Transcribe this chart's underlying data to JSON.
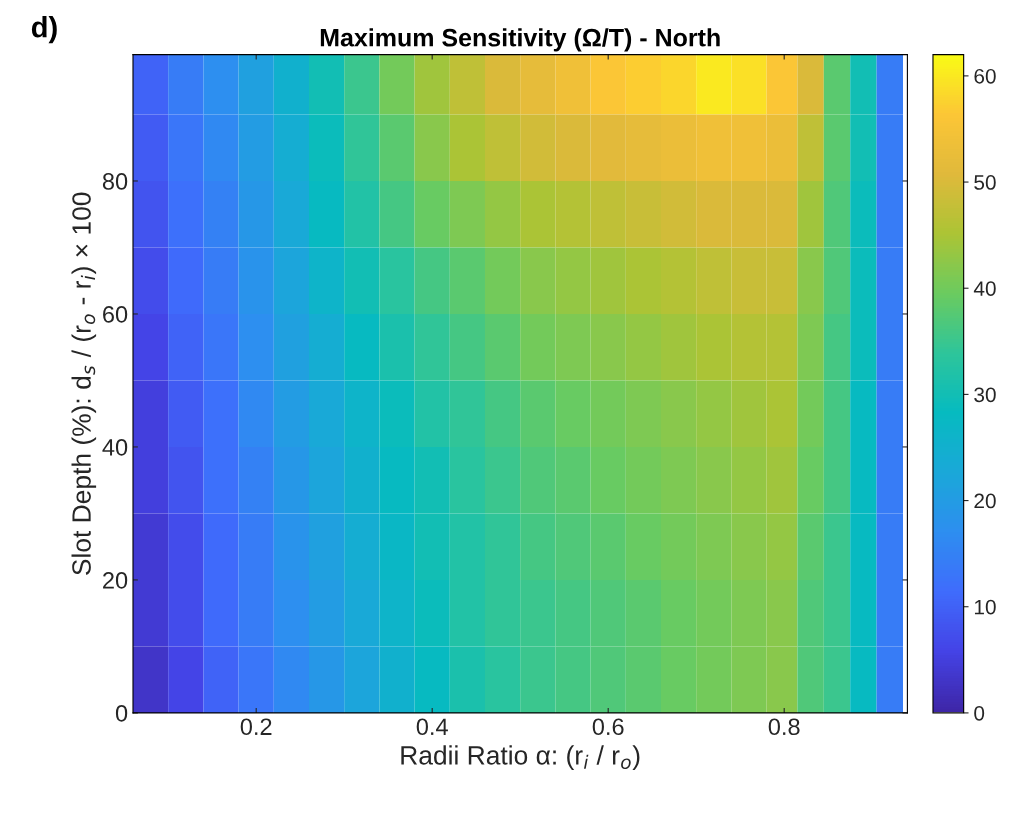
{
  "chart_data": {
    "type": "heatmap",
    "title": "Maximum Sensitivity (Ω/T) - North",
    "xlabel": "Radii Ratio α: (r$_{i}$ / r$_{o}$)",
    "ylabel": "Slot Depth (%): d$_{s}$ / (r$_{o}$ - r$_{i}$) × 100",
    "annotations": [
      "d)"
    ],
    "x": [
      0.08,
      0.12,
      0.16,
      0.2,
      0.24,
      0.28,
      0.32,
      0.36,
      0.4,
      0.44,
      0.48,
      0.52,
      0.56,
      0.6,
      0.64,
      0.68,
      0.72,
      0.76,
      0.8,
      0.83,
      0.86,
      0.89,
      0.92
    ],
    "y": [
      95,
      85,
      75,
      65,
      55,
      45,
      35,
      25,
      15,
      5
    ],
    "cells": [
      [
        10,
        14,
        17,
        21,
        25,
        30,
        35,
        40,
        44,
        47,
        50,
        52,
        54,
        56,
        57,
        58,
        60,
        59,
        56,
        50,
        38,
        30,
        14
      ],
      [
        9,
        13,
        16,
        20,
        24,
        29,
        34,
        38,
        42,
        45,
        47,
        49,
        50,
        51,
        52,
        53,
        54,
        54,
        53,
        47,
        38,
        30,
        14
      ],
      [
        8,
        12,
        15,
        19,
        23,
        28,
        32,
        36,
        39,
        41,
        43,
        45,
        46,
        47,
        48,
        49,
        50,
        50,
        50,
        44,
        37,
        29,
        14
      ],
      [
        7,
        11,
        14,
        18,
        22,
        26,
        30,
        33,
        36,
        38,
        40,
        42,
        43,
        44,
        45,
        46,
        47,
        48,
        48,
        42,
        37,
        29,
        14
      ],
      [
        6,
        10,
        13,
        17,
        21,
        24,
        28,
        31,
        34,
        36,
        38,
        40,
        41,
        42,
        43,
        44,
        45,
        46,
        46,
        41,
        36,
        29,
        14
      ],
      [
        5,
        9,
        12,
        16,
        20,
        23,
        26,
        29,
        32,
        34,
        36,
        38,
        39,
        40,
        41,
        42,
        43,
        44,
        45,
        40,
        36,
        28,
        14
      ],
      [
        5,
        8,
        12,
        15,
        19,
        22,
        25,
        28,
        30,
        33,
        35,
        37,
        38,
        39,
        40,
        41,
        42,
        43,
        44,
        39,
        36,
        28,
        14
      ],
      [
        4,
        7,
        11,
        14,
        18,
        21,
        24,
        27,
        30,
        32,
        34,
        36,
        37,
        38,
        39,
        40,
        41,
        42,
        43,
        38,
        35,
        28,
        14
      ],
      [
        4,
        7,
        11,
        14,
        17,
        20,
        23,
        26,
        29,
        32,
        34,
        35,
        36,
        37,
        38,
        39,
        40,
        41,
        42,
        37,
        35,
        28,
        14
      ],
      [
        3,
        6,
        10,
        13,
        16,
        19,
        22,
        25,
        28,
        31,
        33,
        35,
        36,
        37,
        38,
        39,
        40,
        41,
        42,
        37,
        35,
        28,
        14
      ]
    ],
    "xlim": [
      0.06,
      0.94
    ],
    "ylim": [
      0,
      99
    ],
    "xticks": [
      0.2,
      0.4,
      0.6,
      0.8
    ],
    "yticks": [
      0,
      20,
      40,
      60,
      80
    ],
    "clim": [
      0,
      62
    ],
    "cticks": [
      0,
      10,
      20,
      30,
      40,
      50,
      60
    ]
  }
}
